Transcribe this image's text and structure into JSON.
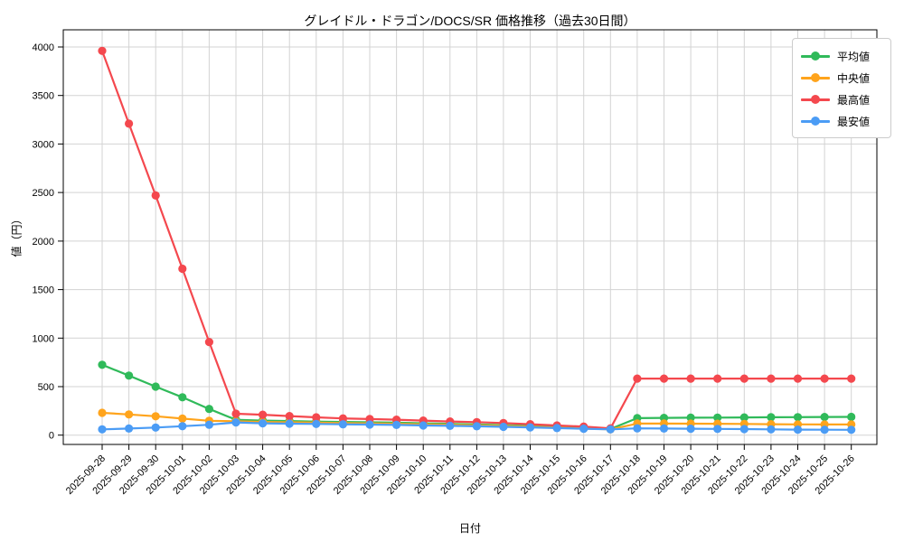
{
  "chart_data": {
    "type": "line",
    "title": "グレイドル・ドラゴン/DOCS/SR 価格推移（過去30日間）",
    "xlabel": "日付",
    "ylabel": "値（円）",
    "grid": true,
    "legend_position": "upper right",
    "ylim": [
      -96,
      4177
    ],
    "yticks": [
      0,
      500,
      1000,
      1500,
      2000,
      2500,
      3000,
      3500,
      4000
    ],
    "categories": [
      "2025-09-28",
      "2025-09-29",
      "2025-09-30",
      "2025-10-01",
      "2025-10-02",
      "2025-10-03",
      "2025-10-04",
      "2025-10-05",
      "2025-10-06",
      "2025-10-07",
      "2025-10-08",
      "2025-10-09",
      "2025-10-10",
      "2025-10-11",
      "2025-10-12",
      "2025-10-13",
      "2025-10-14",
      "2025-10-15",
      "2025-10-16",
      "2025-10-17",
      "2025-10-18",
      "2025-10-19",
      "2025-10-20",
      "2025-10-21",
      "2025-10-22",
      "2025-10-23",
      "2025-10-24",
      "2025-10-25",
      "2025-10-26"
    ],
    "series": [
      {
        "name": "平均値",
        "color": "#30ba5a",
        "values": [
          725,
          613,
          500,
          390,
          270,
          158,
          150,
          145,
          140,
          136,
          132,
          128,
          122,
          116,
          110,
          103,
          95,
          85,
          73,
          63,
          175,
          178,
          180,
          181,
          182,
          184,
          185,
          187,
          188
        ]
      },
      {
        "name": "中央値",
        "color": "#ffa41c",
        "values": [
          230,
          213,
          195,
          170,
          148,
          142,
          136,
          132,
          128,
          125,
          121,
          117,
          112,
          107,
          101,
          95,
          87,
          78,
          68,
          60,
          119,
          119,
          118,
          117,
          115,
          113,
          111,
          110,
          110
        ]
      },
      {
        "name": "最高値",
        "color": "#f4484e",
        "values": [
          3960,
          3210,
          2470,
          1715,
          960,
          221,
          210,
          196,
          183,
          172,
          166,
          159,
          150,
          141,
          134,
          125,
          113,
          100,
          88,
          70,
          583,
          583,
          583,
          583,
          583,
          583,
          583,
          583,
          583
        ]
      },
      {
        "name": "最安値",
        "color": "#4b9cf5",
        "values": [
          60,
          68,
          78,
          92,
          107,
          131,
          122,
          118,
          115,
          112,
          109,
          105,
          100,
          96,
          91,
          86,
          80,
          73,
          66,
          60,
          70,
          68,
          66,
          64,
          62,
          60,
          57,
          56,
          55
        ]
      }
    ]
  }
}
